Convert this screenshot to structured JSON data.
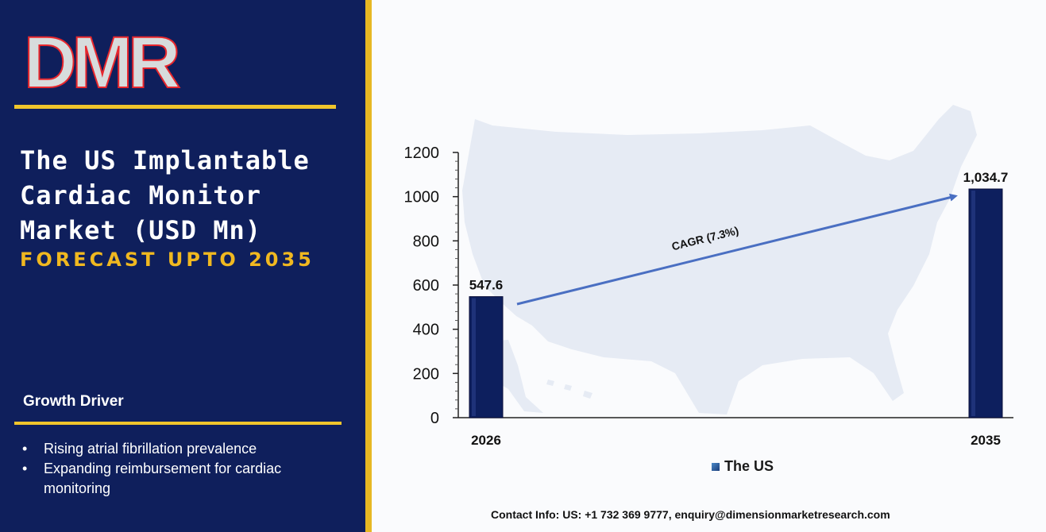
{
  "brand": {
    "logo_text": "DMR"
  },
  "colors": {
    "panel": "#0f1f5c",
    "gold": "#f0c52c",
    "bar": "#0d1f5e",
    "arrow": "#4a6fc2",
    "logo_red": "#e8272d",
    "logo_grey": "#d7dcdc"
  },
  "title": "The US Implantable Cardiac Monitor Market (USD Mn)",
  "subtitle": "FORECAST UPTO 2035",
  "growth": {
    "heading": "Growth Driver",
    "items": [
      "Rising atrial fibrillation prevalence",
      "Expanding reimbursement for cardiac monitoring"
    ]
  },
  "chart_data": {
    "type": "bar",
    "categories": [
      "2026",
      "2035"
    ],
    "series": [
      {
        "name": "The US",
        "values": [
          547.6,
          1034.7
        ]
      }
    ],
    "data_labels": [
      "547.6",
      "1,034.7"
    ],
    "ylim": [
      0,
      1200
    ],
    "yticks": [
      0,
      200,
      400,
      600,
      800,
      1000,
      1200
    ],
    "annotation": "CAGR (7.3%)",
    "grid": false,
    "legend": "bottom"
  },
  "contact": "Contact Info: US: +1 732 369 9777, enquiry@dimensionmarketresearch.com"
}
